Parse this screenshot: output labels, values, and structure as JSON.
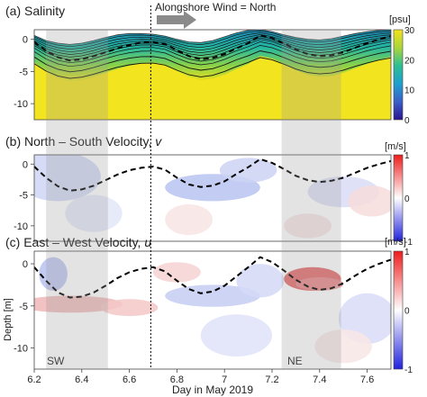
{
  "chart_data": [
    {
      "type": "heatmap",
      "panel_label": "(a) Salinity",
      "variable": "Salinity",
      "colorbar": {
        "unit": "[psu]",
        "ticks": [
          30,
          20,
          10,
          0
        ],
        "range": [
          0,
          30
        ],
        "colormap": "viridis"
      },
      "annotation": "Alongshore Wind = North",
      "yticks": [
        0,
        -5,
        -10
      ],
      "ylim": [
        -12.5,
        1.5
      ],
      "mixed_layer_depth": {
        "x": [
          6.2,
          6.25,
          6.3,
          6.35,
          6.4,
          6.45,
          6.5,
          6.55,
          6.6,
          6.65,
          6.7,
          6.75,
          6.8,
          6.85,
          6.9,
          6.95,
          7.0,
          7.05,
          7.1,
          7.15,
          7.2,
          7.25,
          7.3,
          7.35,
          7.4,
          7.45,
          7.5,
          7.55,
          7.6,
          7.65,
          7.7
        ],
        "y": [
          -0.4,
          -1.8,
          -2.8,
          -3.3,
          -3.1,
          -2.6,
          -2.0,
          -1.4,
          -0.9,
          -0.5,
          -0.4,
          -0.7,
          -1.7,
          -2.6,
          -3.1,
          -2.9,
          -2.3,
          -1.4,
          -0.6,
          0.6,
          0.2,
          -0.6,
          -1.6,
          -2.3,
          -2.6,
          -2.5,
          -2.0,
          -1.3,
          -0.6,
          0.0,
          0.5
        ]
      },
      "surface": {
        "x": [
          6.2,
          6.25,
          6.3,
          6.35,
          6.4,
          6.45,
          6.5,
          6.55,
          6.6,
          6.65,
          6.7,
          6.75,
          6.8,
          6.85,
          6.9,
          6.95,
          7.0,
          7.05,
          7.1,
          7.15,
          7.2,
          7.25,
          7.3,
          7.35,
          7.4,
          7.45,
          7.5,
          7.55,
          7.6,
          7.65,
          7.7
        ],
        "y": [
          0.6,
          -0.2,
          -0.6,
          -0.8,
          -0.6,
          -0.2,
          0.3,
          0.7,
          0.9,
          0.9,
          0.8,
          0.5,
          0.0,
          -0.4,
          -0.5,
          -0.2,
          0.4,
          1.0,
          1.4,
          1.5,
          1.2,
          0.7,
          0.3,
          0.0,
          -0.1,
          0.1,
          0.5,
          0.9,
          1.2,
          1.4,
          1.5
        ]
      }
    },
    {
      "type": "heatmap",
      "panel_label": "(b) North – South Velocity, ",
      "variable_symbol": "v",
      "colorbar": {
        "unit": "[m/s]",
        "ticks": [
          1,
          0,
          -1
        ],
        "range": [
          -1,
          1
        ],
        "colormap": "blue-white-red"
      },
      "yticks": [
        0,
        -5,
        -10
      ],
      "ylim": [
        -12.5,
        1.5
      ],
      "mixed_layer_depth": {
        "x": [
          6.2,
          6.25,
          6.3,
          6.35,
          6.4,
          6.45,
          6.5,
          6.55,
          6.6,
          6.65,
          6.7,
          6.75,
          6.8,
          6.85,
          6.9,
          6.95,
          7.0,
          7.05,
          7.1,
          7.15,
          7.2,
          7.25,
          7.3,
          7.35,
          7.4,
          7.45,
          7.5,
          7.55,
          7.6,
          7.65,
          7.7
        ],
        "y": [
          -0.4,
          -2.2,
          -3.6,
          -4.3,
          -4.1,
          -3.5,
          -2.6,
          -1.7,
          -1.0,
          -0.6,
          -0.4,
          -0.9,
          -2.2,
          -3.3,
          -3.7,
          -3.5,
          -2.8,
          -1.6,
          -0.5,
          0.8,
          0.2,
          -0.8,
          -1.9,
          -2.6,
          -2.9,
          -2.7,
          -2.2,
          -1.4,
          -0.6,
          0.0,
          0.5
        ]
      }
    },
    {
      "type": "heatmap",
      "panel_label": "(c) East – West Velocity, ",
      "variable_symbol": "u",
      "colorbar": {
        "unit": "[m/s]",
        "ticks": [
          1,
          0,
          -1
        ],
        "range": [
          -1,
          1
        ],
        "colormap": "blue-white-red"
      },
      "yticks": [
        0,
        -5,
        -10
      ],
      "ylim": [
        -12.5,
        1.5
      ],
      "ylabel": "Depth [m]",
      "xlabel": "Day in May 2019",
      "xticks": [
        6.2,
        6.4,
        6.6,
        6.8,
        7,
        7.2,
        7.4,
        7.6
      ],
      "xtick_labels": [
        "6.2",
        "6.4",
        "6.6",
        "6.8",
        "7",
        "7.2",
        "7.4",
        "7.6"
      ],
      "xlim": [
        6.2,
        7.7
      ],
      "shaded_periods": [
        {
          "label": "SW",
          "start": 6.25,
          "end": 6.51
        },
        {
          "label": "NE",
          "start": 7.24,
          "end": 7.49
        }
      ],
      "wind_change_line": 6.69,
      "mixed_layer_depth": {
        "x": [
          6.2,
          6.25,
          6.3,
          6.35,
          6.4,
          6.45,
          6.5,
          6.55,
          6.6,
          6.65,
          6.7,
          6.75,
          6.8,
          6.85,
          6.9,
          6.95,
          7.0,
          7.05,
          7.1,
          7.15,
          7.2,
          7.25,
          7.3,
          7.35,
          7.4,
          7.45,
          7.5,
          7.55,
          7.6,
          7.65,
          7.7
        ],
        "y": [
          -0.4,
          -2.0,
          -3.4,
          -4.0,
          -3.9,
          -3.4,
          -2.6,
          -1.7,
          -1.0,
          -0.6,
          -0.4,
          -0.9,
          -2.0,
          -3.0,
          -3.5,
          -3.3,
          -2.6,
          -1.5,
          -0.4,
          0.8,
          0.2,
          -0.8,
          -1.9,
          -2.7,
          -3.1,
          -2.9,
          -2.3,
          -1.4,
          -0.6,
          0.0,
          0.5
        ]
      }
    }
  ]
}
